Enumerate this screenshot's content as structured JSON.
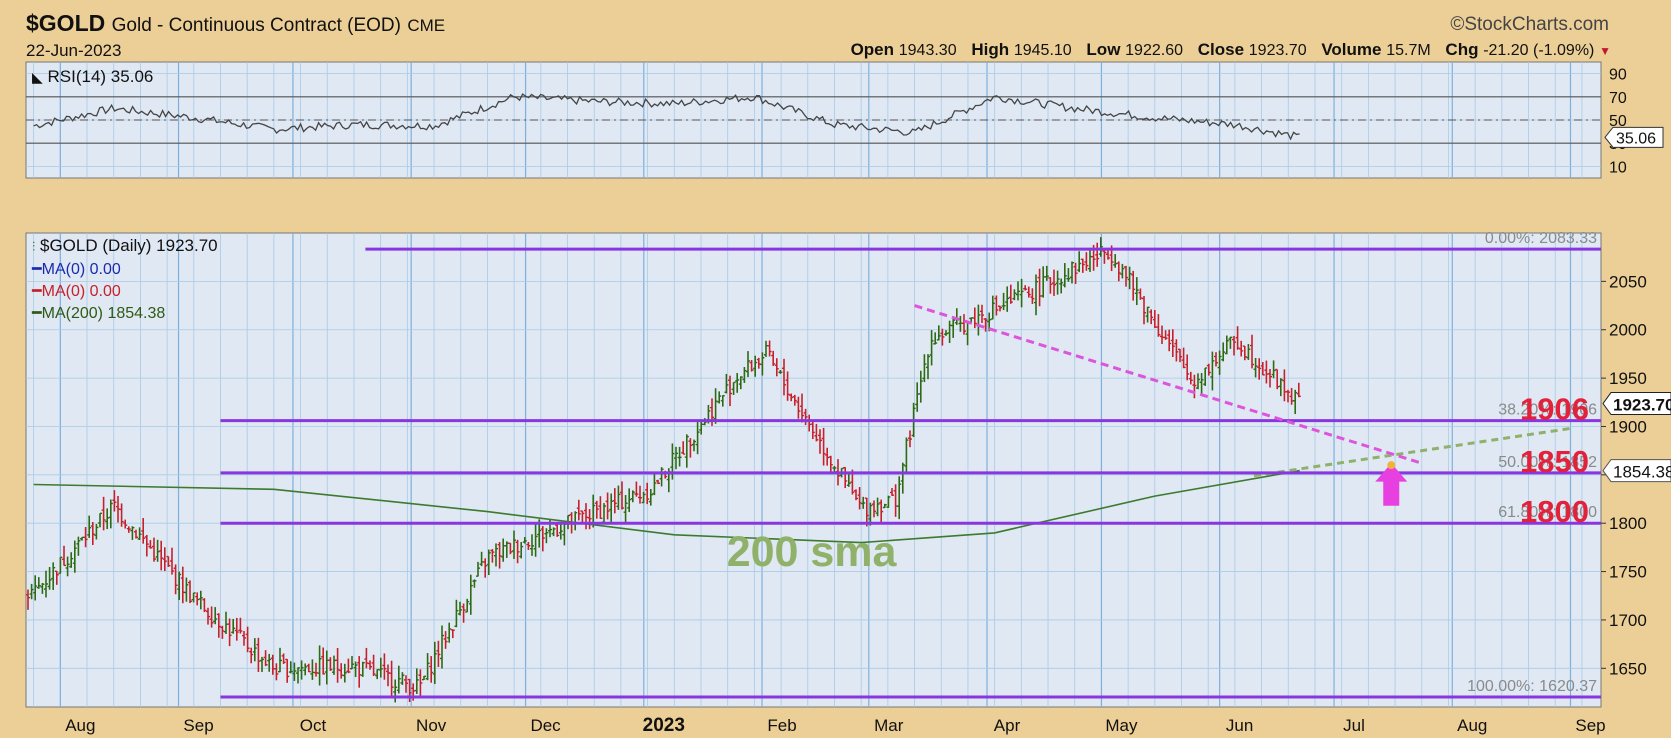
{
  "header": {
    "symbol": "$GOLD",
    "name": "Gold - Continuous Contract (EOD)",
    "exchange": "CME",
    "date": "22-Jun-2023",
    "source": "©StockCharts.com",
    "open_label": "Open",
    "open": "1943.30",
    "high_label": "High",
    "high": "1945.10",
    "low_label": "Low",
    "low": "1922.60",
    "close_label": "Close",
    "close": "1923.70",
    "volume_label": "Volume",
    "volume": "15.7M",
    "chg_label": "Chg",
    "chg": "-21.20 (-1.09%)"
  },
  "rsi_panel": {
    "legend": "RSI(14) 35.06",
    "value_tag": "35.06",
    "ticks": [
      "90",
      "70",
      "50",
      "30",
      "10"
    ]
  },
  "price_panel": {
    "legend_main": "$GOLD (Daily) 1923.70",
    "legend_ma1": "MA(0) 0.00",
    "legend_ma2": "MA(0) 0.00",
    "legend_ma200": "MA(200) 1854.38",
    "last_tag": "1923.70",
    "ma_tag": "1854.38",
    "annotation_sma": "200 sma"
  },
  "colors": {
    "background": "#eccf96",
    "panel": "#dfe8f3",
    "grid": "#a9cbe6",
    "bar_up": "#2d6a14",
    "bar_down": "#c8202b",
    "fib_line": "#8a36e0",
    "trend_line": "#dd55dd",
    "ma200": "#3c7a2e",
    "ma200_ext": "#8fb16a",
    "fib_label_red": "#e2223a",
    "arrow": "#e83fe0"
  },
  "chart_data": [
    {
      "type": "line",
      "title": "RSI(14) 35.06",
      "x_dates": [
        "2022-07-25",
        "2022-08-15",
        "2022-09-05",
        "2022-09-26",
        "2022-10-17",
        "2022-11-07",
        "2022-11-28",
        "2022-12-19",
        "2023-01-09",
        "2023-01-30",
        "2023-02-20",
        "2023-03-13",
        "2023-04-03",
        "2023-04-24",
        "2023-05-15",
        "2023-06-05",
        "2023-06-22"
      ],
      "values": [
        45,
        60,
        52,
        42,
        46,
        45,
        70,
        66,
        64,
        70,
        46,
        39,
        70,
        60,
        52,
        46,
        35
      ],
      "ylim": [
        0,
        100
      ],
      "reference_lines": [
        30,
        50,
        70
      ],
      "yticks": [
        10,
        30,
        50,
        70,
        90
      ]
    },
    {
      "type": "line",
      "title": "$GOLD (Daily) 1923.70",
      "x_labels": [
        "Aug",
        "Sep",
        "Oct",
        "Nov",
        "Dec",
        "2023",
        "Feb",
        "Mar",
        "Apr",
        "May",
        "Jun",
        "Jul",
        "Aug",
        "Sep"
      ],
      "y_ticks": [
        1650,
        1700,
        1750,
        1800,
        1850,
        1900,
        1950,
        2000,
        2050
      ],
      "ylim": [
        1610,
        2100
      ],
      "series": [
        {
          "name": "$GOLD",
          "x_dates": [
            "2022-07-25",
            "2022-08-15",
            "2022-09-05",
            "2022-09-26",
            "2022-10-17",
            "2022-11-03",
            "2022-11-21",
            "2022-12-12",
            "2023-01-03",
            "2023-01-25",
            "2023-02-02",
            "2023-02-27",
            "2023-03-08",
            "2023-03-17",
            "2023-04-13",
            "2023-05-03",
            "2023-05-25",
            "2023-06-05",
            "2023-06-22"
          ],
          "values": [
            1728,
            1818,
            1722,
            1650,
            1652,
            1630,
            1765,
            1800,
            1835,
            1950,
            1975,
            1815,
            1825,
            1990,
            2040,
            2083,
            1945,
            1990,
            1923.7
          ]
        },
        {
          "name": "MA(200)",
          "x_dates": [
            "2022-07-25",
            "2022-09-26",
            "2022-11-21",
            "2023-01-09",
            "2023-02-27",
            "2023-04-03",
            "2023-05-15",
            "2023-06-22"
          ],
          "values": [
            1840,
            1835,
            1812,
            1788,
            1780,
            1790,
            1828,
            1854.38
          ]
        }
      ],
      "fibonacci": [
        {
          "label": "0.00%: 2083.33",
          "value": 2083.33
        },
        {
          "label": "38.20%: 1906",
          "value": 1906,
          "callout": "1906"
        },
        {
          "label": "50.00%: 1852",
          "value": 1852,
          "callout": "1850"
        },
        {
          "label": "61.80%: 1800",
          "value": 1800,
          "callout": "1800"
        },
        {
          "label": "100.00%: 1620.37",
          "value": 1620.37
        }
      ]
    }
  ]
}
